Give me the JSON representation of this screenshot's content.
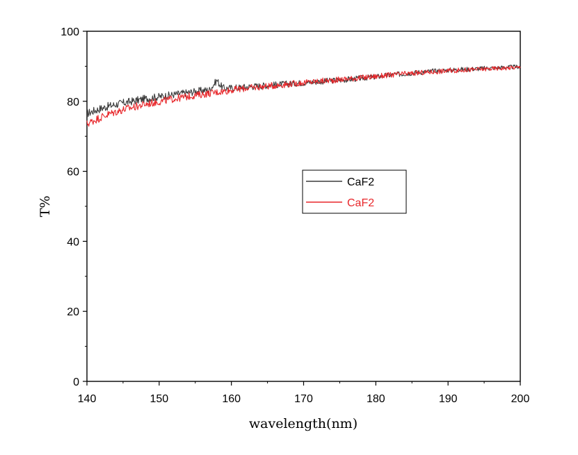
{
  "chart_data": {
    "type": "line",
    "title": "",
    "xlabel": "wavelength(nm)",
    "ylabel": "T%",
    "xlim": [
      140,
      200
    ],
    "ylim": [
      0,
      100
    ],
    "xticks": [
      140,
      150,
      160,
      170,
      180,
      190,
      200
    ],
    "yticks": [
      0,
      20,
      40,
      60,
      80,
      100
    ],
    "grid": false,
    "legend_position": "center-right",
    "series": [
      {
        "name": "CaF2",
        "color": "#3a3a3a",
        "x": [
          140,
          141,
          142,
          143,
          144,
          145,
          146,
          147,
          148,
          149,
          150,
          151,
          152,
          153,
          154,
          155,
          156,
          157,
          158,
          158.5,
          159,
          160,
          162,
          164,
          166,
          168,
          170,
          172,
          174,
          176,
          178,
          180,
          182,
          184,
          186,
          188,
          190,
          192,
          194,
          196,
          198,
          200
        ],
        "values": [
          76.5,
          77.3,
          78.0,
          78.6,
          79.1,
          79.5,
          79.9,
          80.3,
          80.7,
          81.0,
          81.3,
          81.6,
          81.9,
          82.2,
          82.5,
          82.8,
          83.1,
          83.3,
          86.0,
          84.5,
          83.7,
          83.8,
          84.1,
          84.4,
          84.7,
          85.0,
          85.3,
          85.6,
          85.9,
          86.2,
          86.6,
          87.0,
          87.5,
          87.9,
          88.3,
          88.6,
          88.9,
          89.1,
          89.3,
          89.5,
          89.7,
          89.9
        ]
      },
      {
        "name": "CaF2",
        "color": "#e8262a",
        "x": [
          140,
          141,
          142,
          143,
          144,
          145,
          146,
          147,
          148,
          149,
          150,
          151,
          152,
          153,
          154,
          155,
          156,
          157,
          158,
          159,
          160,
          162,
          164,
          166,
          168,
          170,
          172,
          174,
          176,
          178,
          180,
          182,
          184,
          186,
          188,
          190,
          192,
          194,
          196,
          198,
          200
        ],
        "values": [
          73.5,
          74.6,
          75.5,
          76.3,
          77.0,
          77.6,
          78.1,
          78.6,
          79.1,
          79.5,
          79.9,
          80.3,
          80.7,
          81.0,
          81.4,
          81.7,
          82.0,
          82.3,
          82.6,
          82.9,
          83.2,
          83.7,
          84.1,
          84.5,
          84.9,
          85.3,
          85.7,
          86.0,
          86.4,
          86.7,
          87.1,
          87.5,
          87.8,
          88.1,
          88.4,
          88.7,
          88.9,
          89.1,
          89.3,
          89.5,
          89.7
        ]
      }
    ]
  }
}
